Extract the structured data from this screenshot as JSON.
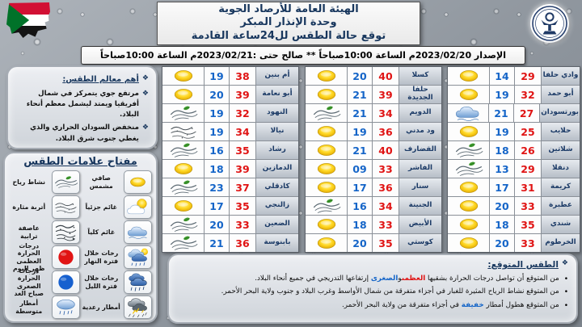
{
  "header": {
    "title_lines": [
      "الهيئة العامة للأرصاد الجوية",
      "وحدة الإنذار المبكر",
      "توقع حالة الطقس لل24ساعة القادمة"
    ],
    "issue_line": "الإصدار 2023/02/20م الساعة 10:00صباحاً ** صالح حتى :2023/02/21م الساعة 10:00صباحاً"
  },
  "features": {
    "heading": "أهم معالم الطقس:",
    "items": [
      "مرتفع جوي يتمركز في شمال أفريقيا ويمتد ليشمل معظم أنحاء البلاد.",
      "منخفض السودان الحراري والذي يغطي جنوب شرق البلاد."
    ]
  },
  "legend": {
    "heading": "مفتاح علامات الطقس",
    "right_column": [
      {
        "label": "صافي مشمس",
        "icon": "sunny"
      },
      {
        "label": "غائم جزئياً",
        "icon": "partly-cloudy"
      },
      {
        "label": "غائم كلياً",
        "icon": "cloudy"
      },
      {
        "label": "رخات خلال فترة النهار",
        "icon": "day-showers"
      },
      {
        "label": "رخات خلال فترة الليل",
        "icon": "night-showers"
      },
      {
        "label": "أمطار رعدية",
        "icon": "thunderstorm"
      }
    ],
    "left_column": [
      {
        "label": "نشاط رياح",
        "icon": "wind"
      },
      {
        "label": "أتربة مثارة",
        "icon": "dust"
      },
      {
        "label": "عاصفة ترابية",
        "icon": "dust-storm"
      },
      {
        "label": "درجات الحرارة العظمى ظهر اليوم",
        "icon": "max-temp"
      },
      {
        "label": "درجات الحرارة الصغرى صباح الغد",
        "icon": "min-temp"
      },
      {
        "label": "أمطار متوسطة",
        "icon": "moderate-rain"
      }
    ]
  },
  "forecast_tables": [
    {
      "position": "left",
      "rows": [
        {
          "city": "أم بنين",
          "min": "19",
          "max": "38",
          "icon": "sunny"
        },
        {
          "city": "أبو نعامة",
          "min": "20",
          "max": "39",
          "icon": "sunny"
        },
        {
          "city": "النهود",
          "min": "19",
          "max": "32",
          "icon": "wind"
        },
        {
          "city": "نيالا",
          "min": "19",
          "max": "34",
          "icon": "dust"
        },
        {
          "city": "رشاد",
          "min": "16",
          "max": "35",
          "icon": "wind"
        },
        {
          "city": "الدمازين",
          "min": "18",
          "max": "39",
          "icon": "sunny"
        },
        {
          "city": "كادقلي",
          "min": "23",
          "max": "37",
          "icon": "wind"
        },
        {
          "city": "زالنجي",
          "min": "17",
          "max": "35",
          "icon": "sunny"
        },
        {
          "city": "الضعين",
          "min": "20",
          "max": "33",
          "icon": "wind"
        },
        {
          "city": "بابنوسة",
          "min": "21",
          "max": "36",
          "icon": "wind"
        }
      ]
    },
    {
      "position": "middle",
      "rows": [
        {
          "city": "كسلا",
          "min": "20",
          "max": "40",
          "icon": "sunny"
        },
        {
          "city": "حلفا الجديدة",
          "min": "21",
          "max": "39",
          "icon": "sunny"
        },
        {
          "city": "الدويم",
          "min": "21",
          "max": "34",
          "icon": "wind"
        },
        {
          "city": "ود مدني",
          "min": "19",
          "max": "36",
          "icon": "sunny"
        },
        {
          "city": "القضارف",
          "min": "21",
          "max": "40",
          "icon": "sunny"
        },
        {
          "city": "الفاشر",
          "min": "09",
          "max": "33",
          "icon": "sunny"
        },
        {
          "city": "سنار",
          "min": "17",
          "max": "36",
          "icon": "sunny"
        },
        {
          "city": "الجنينة",
          "min": "16",
          "max": "34",
          "icon": "wind"
        },
        {
          "city": "الأبيض",
          "min": "18",
          "max": "33",
          "icon": "sunny"
        },
        {
          "city": "كوستي",
          "min": "20",
          "max": "35",
          "icon": "sunny"
        }
      ]
    },
    {
      "position": "right",
      "rows": [
        {
          "city": "وادي حلفا",
          "min": "14",
          "max": "29",
          "icon": "sunny"
        },
        {
          "city": "أبو حمد",
          "min": "19",
          "max": "32",
          "icon": "sunny"
        },
        {
          "city": "بورتسودان",
          "min": "21",
          "max": "27",
          "icon": "cloudy"
        },
        {
          "city": "حلايب",
          "min": "19",
          "max": "25",
          "icon": "sunny"
        },
        {
          "city": "شلاتين",
          "min": "18",
          "max": "26",
          "icon": "wind"
        },
        {
          "city": "دنقلا",
          "min": "13",
          "max": "29",
          "icon": "wind"
        },
        {
          "city": "كريمة",
          "min": "17",
          "max": "31",
          "icon": "sunny"
        },
        {
          "city": "عطبرة",
          "min": "20",
          "max": "33",
          "icon": "sunny"
        },
        {
          "city": "شندي",
          "min": "18",
          "max": "35",
          "icon": "sunny"
        },
        {
          "city": "الخرطوم",
          "min": "20",
          "max": "33",
          "icon": "sunny"
        }
      ]
    }
  ],
  "outlook": {
    "heading": "الطقس المتوقع:",
    "bullets": [
      [
        {
          "t": "من المتوقع أن تواصل درجات الحرارة بشقيها "
        },
        {
          "t": "العظمى",
          "c": "#e01414"
        },
        {
          "t": "و"
        },
        {
          "t": "الصغرى",
          "c": "#1565c8"
        },
        {
          "t": " إرتفاعها التدريجي في جميع أنحاء البلاد."
        }
      ],
      [
        {
          "t": "من المتوقع نشاط الرياح المثيرة للغبار في أجزاء متفرقة من شمال الأواسط وغرب البلاد و جنوب ولاية البحر الأحمر."
        }
      ],
      [
        {
          "t": "من المتوقع هطول أمطار "
        },
        {
          "t": "خفيفة",
          "c": "#1565c8"
        },
        {
          "t": " في أجزاء متفرقة من ولاية البحر الأحمر."
        }
      ]
    ]
  },
  "colors": {
    "max_temp": "#e01414",
    "min_temp": "#1565c8",
    "heading": "#17365d"
  }
}
